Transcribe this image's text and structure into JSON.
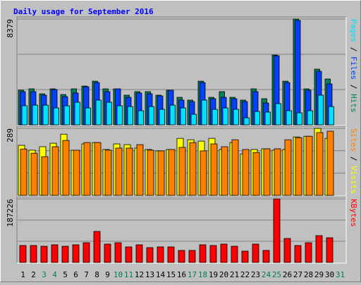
{
  "title": "Daily usage for September 2016",
  "chart_data": [
    {
      "type": "bar",
      "ylim": [
        0,
        8379
      ],
      "yticks": [
        8379
      ],
      "series": [
        {
          "name": "Hits",
          "color": "#00805c",
          "values": [
            2740,
            2850,
            2460,
            2850,
            2400,
            2850,
            3070,
            3460,
            2850,
            2850,
            2350,
            2630,
            2630,
            2350,
            2740,
            2180,
            1960,
            3460,
            2180,
            2630,
            2180,
            1960,
            2850,
            2070,
            5530,
            3460,
            8379,
            2850,
            4410,
            3630,
            0
          ]
        },
        {
          "name": "Files",
          "color": "#0040ff",
          "values": [
            2630,
            2630,
            2350,
            2800,
            2230,
            2520,
            3020,
            3350,
            2630,
            2850,
            2180,
            2520,
            2460,
            2290,
            2740,
            1960,
            1840,
            3350,
            2070,
            2180,
            2070,
            1840,
            2630,
            1730,
            5470,
            3350,
            8270,
            2740,
            4240,
            3240,
            0
          ]
        },
        {
          "name": "Pages",
          "color": "#00e0ff",
          "values": [
            1510,
            1560,
            1560,
            1340,
            1510,
            1790,
            1340,
            1960,
            1790,
            1510,
            1450,
            1120,
            1450,
            1230,
            1560,
            1340,
            840,
            1960,
            1230,
            1340,
            1230,
            560,
            1060,
            1010,
            1680,
            1120,
            950,
            1120,
            2350,
            1450,
            0
          ]
        }
      ]
    },
    {
      "type": "bar",
      "ylim": [
        0,
        289
      ],
      "yticks": [
        289
      ],
      "series": [
        {
          "name": "Visits",
          "color": "#ffff00",
          "values": [
            216,
            195,
            210,
            225,
            264,
            195,
            222,
            228,
            198,
            222,
            219,
            204,
            198,
            192,
            198,
            246,
            240,
            234,
            246,
            198,
            228,
            179,
            198,
            201,
            195,
            198,
            252,
            255,
            289,
            246,
            0
          ]
        },
        {
          "name": "Sites",
          "color": "#ff8000",
          "values": [
            200,
            182,
            167,
            210,
            237,
            195,
            228,
            228,
            195,
            204,
            204,
            219,
            195,
            192,
            198,
            207,
            228,
            192,
            222,
            210,
            240,
            198,
            185,
            201,
            201,
            240,
            249,
            255,
            271,
            277,
            0
          ]
        }
      ]
    },
    {
      "type": "bar",
      "ylim": [
        0,
        187226
      ],
      "yticks": [
        187226
      ],
      "categories": [
        "1",
        "2",
        "3",
        "4",
        "5",
        "6",
        "7",
        "8",
        "9",
        "10",
        "11",
        "12",
        "13",
        "14",
        "15",
        "16",
        "17",
        "18",
        "19",
        "20",
        "21",
        "22",
        "23",
        "24",
        "25",
        "26",
        "27",
        "28",
        "29",
        "30",
        "31"
      ],
      "category_colors": [
        "#000000",
        "#000000",
        "#00805c",
        "#00805c",
        "#000000",
        "#000000",
        "#000000",
        "#000000",
        "#000000",
        "#00805c",
        "#00805c",
        "#000000",
        "#000000",
        "#000000",
        "#000000",
        "#000000",
        "#00805c",
        "#00805c",
        "#000000",
        "#000000",
        "#000000",
        "#000000",
        "#000000",
        "#00805c",
        "#00805c",
        "#000000",
        "#000000",
        "#000000",
        "#000000",
        "#000000",
        "#00805c"
      ],
      "series": [
        {
          "name": "KBytes",
          "color": "#ff0000",
          "values": [
            49900,
            49900,
            47800,
            52000,
            47800,
            52000,
            58200,
            91500,
            54100,
            58200,
            45800,
            52000,
            43700,
            45800,
            45800,
            35400,
            35400,
            52000,
            49900,
            54100,
            47800,
            33300,
            54100,
            35400,
            187226,
            70700,
            49900,
            58200,
            79000,
            72800,
            0
          ]
        }
      ]
    }
  ]
}
